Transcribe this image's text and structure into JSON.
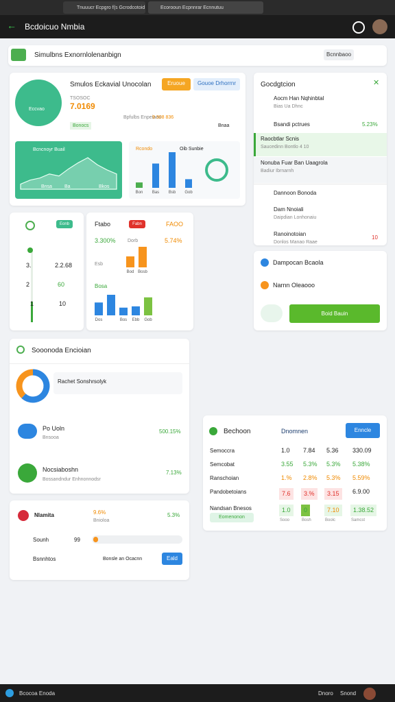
{
  "browser": {
    "tabs": [
      "Tnuuucr Ecpgro f(s Gcrodcotoid",
      "Ecorooun Ecpnnrar Ecnnutuu"
    ]
  },
  "header": {
    "title": "Bcdoicuo Nmbia"
  },
  "search": {
    "text": "Simulbns Exnornlolenanbign",
    "button": "Bcnnbaoo"
  },
  "summary": {
    "icon_text": "Eccvao",
    "title": "Smulos Eckavial Unocolan",
    "button_primary": "Eruoue",
    "button_secondary": "Gouoe Drhorrnr",
    "subtitle": "TSOSOC",
    "value": "7.0169",
    "meta": "Bpfulbs Enpeiaeo",
    "meta_value": "9 308 836",
    "tag": "Bonocs",
    "link": "Bnaa"
  },
  "area_chart": {
    "type": "area",
    "title": "Bcncnoyr Buail",
    "labels": [
      "Bnsa",
      "Ba",
      "Bkos"
    ],
    "values": [
      10,
      18,
      22,
      30,
      26,
      40,
      52,
      62,
      48,
      38,
      30
    ],
    "color": "#3dbb8c"
  },
  "bar_chart": {
    "type": "bar",
    "title": "Rcondo",
    "legend": "Oib Sunbie",
    "categories": [
      "Bon",
      "Bas",
      "Bsb",
      "Gob"
    ],
    "values": [
      10,
      45,
      66,
      16
    ],
    "colors": [
      "#4cae4f",
      "#2d86e0",
      "#2d86e0",
      "#2d86e0"
    ]
  },
  "gauge_card": {
    "badge": "Eonb",
    "rows": [
      [
        "3.",
        "2.2.68"
      ],
      [
        "2",
        "60"
      ],
      [
        "1",
        "10"
      ]
    ]
  },
  "stats_card": {
    "title": "Ftabo",
    "badge": "Fabn",
    "flag": "FAOO",
    "value_a": "3.300%",
    "label_a": "Dorb",
    "value_b": "5.74%",
    "label_b": "Esb",
    "label_c": "Bosa",
    "chart_top": {
      "type": "bar",
      "categories": [
        "Bod",
        "Bosb"
      ],
      "values": [
        16,
        30
      ],
      "color": "#f7941d"
    },
    "chart_bottom": {
      "type": "bar",
      "categories": [
        "Dos",
        null,
        "Bos",
        "Ebb",
        "Gob"
      ],
      "values": [
        20,
        32,
        12,
        14,
        28
      ],
      "colors": [
        "#2d86e0",
        "#2d86e0",
        "#2d86e0",
        "#2d86e0",
        "#7cc242"
      ]
    }
  },
  "side_list": {
    "title": "Gocdgtcion",
    "items": [
      {
        "title": "Aocm Han Nqhinbtal",
        "sub": "Bias Ua Dhnc"
      },
      {
        "title": "Bsandi pctrues",
        "value": "5.23%"
      },
      {
        "title": "Raocbtlar Scnis",
        "sub": "Saucedinn Bontlo 4 10"
      },
      {
        "title": "Nonuba Fuar Ban Uaagrola",
        "sub": "Badiur Ibrnarnh"
      },
      {
        "title": "Dannoon Bonoda"
      },
      {
        "title": "Dam Nnoiali",
        "sub": "Daipdian Lonhonaiu"
      },
      {
        "title": "Ranoinotoian",
        "sub": "Donlos Manao Raae",
        "value": "10"
      }
    ]
  },
  "side_card": {
    "items": [
      "Dampocan Bcaola",
      "Narnn Oleaooo"
    ],
    "button": "Boid Bauin"
  },
  "section": {
    "title": "Sooonoda Encioian",
    "donut": {
      "type": "pie",
      "values": [
        62,
        38
      ],
      "colors": [
        "#2d86e0",
        "#f7941d"
      ]
    },
    "donut_label": "Rachet Sonshrsolyk",
    "rows": [
      {
        "title": "Po Uoln",
        "sub": "Bnsooa",
        "value": "500.15%"
      },
      {
        "title": "Nocsiaboshn",
        "sub": "Bossandndur Enhnonnodsr",
        "value": "7.13%"
      }
    ]
  },
  "alert_card": {
    "title": "Nlamita",
    "value_a": "9.6%",
    "label_a": "Bnioloa",
    "value_b": "5.3%",
    "row1": "Sounh",
    "row1_value": "99",
    "row2": "Bsnnhtos",
    "row2_text": "Bonsle an Ocacnn",
    "button": "Eald"
  },
  "table": {
    "title": "Bechoon",
    "subtitle": "Dnomnen",
    "button": "Enncle",
    "rows": [
      [
        "Semoccra",
        "1.0",
        "7.84",
        "5.36",
        "330.09"
      ],
      [
        "Semcobat",
        "3.55",
        "5.3%",
        "5.3%",
        "5.38%"
      ],
      [
        "Ranschoian",
        "1.%",
        "2.8%",
        "5.3%",
        "5.59%"
      ],
      [
        "Pandobetoians",
        "7.6",
        "3.%",
        "3.15",
        "6.9.00"
      ],
      [
        "Nandsan Bnesos",
        "1.0",
        "0",
        "7.10",
        "1.38.52"
      ]
    ],
    "badge": "Eomenonon",
    "footer": [
      "Sooo",
      "Bosh",
      "Boolc",
      "Samcst"
    ]
  },
  "taskbar": {
    "items": [
      "Bcocoa Enoda",
      "Dnoro",
      "Snond"
    ]
  }
}
